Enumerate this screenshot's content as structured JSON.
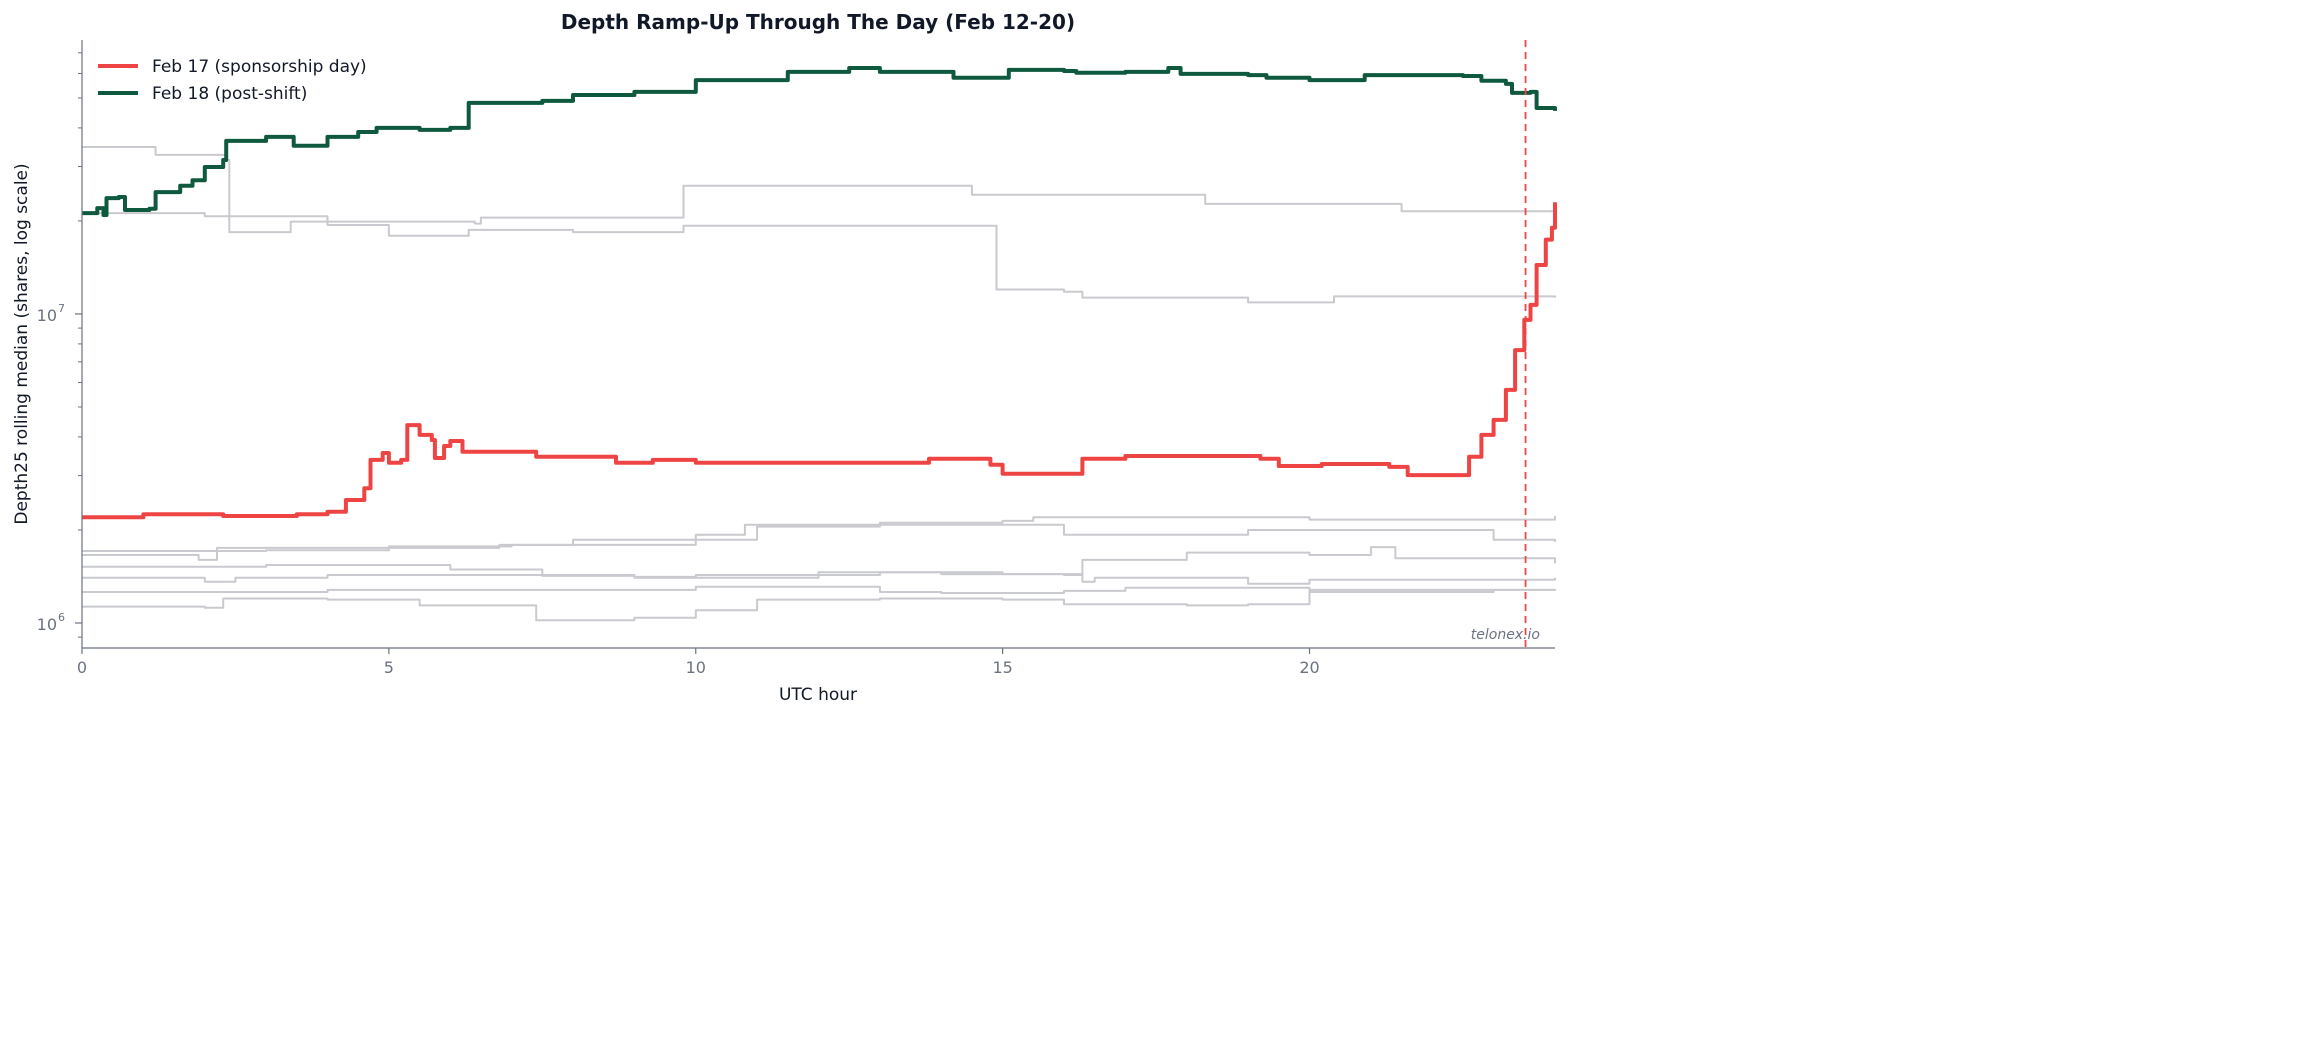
{
  "chart_data": {
    "type": "line",
    "title": "Depth Ramp-Up Through The Day (Feb 12-20)",
    "xlabel": "UTC hour",
    "ylabel": "Depth25 rolling median (shares, log scale)",
    "xlim": [
      0,
      24
    ],
    "ylim": [
      830000,
      77000000
    ],
    "yscale": "log",
    "xticks": [
      0,
      5,
      10,
      15,
      20
    ],
    "yticks": [
      {
        "value": 1000000,
        "base": "10",
        "exp": "6"
      },
      {
        "value": 10000000,
        "base": "10",
        "exp": "7"
      }
    ],
    "grid": false,
    "legend_position": "top-left",
    "step": true,
    "marker_line": {
      "x": 23.52,
      "color": "#ef4444",
      "style": "dashed"
    },
    "watermark": "telonex.io",
    "colors": {
      "feb17": "#ef4444",
      "feb18": "#0f5a3e",
      "other": "#c9cacf"
    },
    "series": [
      {
        "name": "Feb 17 (sponsorship day)",
        "highlight": true,
        "color": "#ef4444",
        "x": [
          0,
          1.0,
          2.3,
          3.5,
          4.0,
          4.3,
          4.6,
          4.7,
          4.9,
          5.0,
          5.2,
          5.3,
          5.5,
          5.7,
          5.75,
          5.9,
          6.0,
          6.2,
          7.4,
          8.7,
          9.3,
          10.0,
          13.5,
          13.8,
          14.8,
          15.0,
          16.2,
          16.3,
          17.0,
          19.2,
          19.5,
          20.2,
          21.3,
          21.6,
          22.5,
          22.6,
          22.8,
          23.0,
          23.2,
          23.35,
          23.5,
          23.6,
          23.7,
          23.85,
          23.95,
          24.0
        ],
        "y": [
          2200000.0,
          2250000.0,
          2220000.0,
          2250000.0,
          2290000.0,
          2500000.0,
          2730000.0,
          3370000.0,
          3550000.0,
          3300000.0,
          3370000.0,
          4370000.0,
          4060000.0,
          3910000.0,
          3420000.0,
          3740000.0,
          3880000.0,
          3580000.0,
          3450000.0,
          3300000.0,
          3370000.0,
          3300000.0,
          3300000.0,
          3400000.0,
          3250000.0,
          3040000.0,
          3040000.0,
          3400000.0,
          3470000.0,
          3400000.0,
          3220000.0,
          3270000.0,
          3200000.0,
          3010000.0,
          3010000.0,
          3450000.0,
          4060000.0,
          4540000.0,
          5680000.0,
          7640000.0,
          9570000.0,
          10700000.0,
          14400000.0,
          17400000.0,
          19000000.0,
          23000000.0
        ]
      },
      {
        "name": "Feb 18 (post-shift)",
        "highlight": true,
        "color": "#0f5a3e",
        "x": [
          0,
          0.25,
          0.35,
          0.4,
          0.6,
          0.7,
          1.1,
          1.2,
          1.6,
          1.8,
          2.0,
          2.3,
          2.35,
          3.0,
          3.4,
          3.45,
          3.9,
          4.0,
          4.5,
          4.8,
          5.5,
          6.0,
          6.3,
          7.5,
          8.0,
          9.0,
          10.0,
          11.5,
          12.5,
          13.0,
          14.2,
          15.0,
          15.1,
          16.0,
          16.2,
          17.0,
          17.7,
          17.9,
          19.0,
          19.3,
          20.0,
          20.8,
          20.9,
          22.5,
          22.8,
          23.2,
          23.3,
          23.6,
          23.7,
          24.0
        ],
        "y": [
          21200000.0,
          22000000.0,
          20900000.0,
          23700000.0,
          23900000.0,
          21700000.0,
          21900000.0,
          24800000.0,
          26000000.0,
          27100000.0,
          29900000.0,
          31500000.0,
          36300000.0,
          37400000.0,
          37400000.0,
          35000000.0,
          35000000.0,
          37400000.0,
          38800000.0,
          40000000.0,
          39400000.0,
          40000000.0,
          48200000.0,
          48900000.0,
          51100000.0,
          52300000.0,
          57100000.0,
          60700000.0,
          62500000.0,
          60700000.0,
          58100000.0,
          58100000.0,
          61600000.0,
          61100000.0,
          60300000.0,
          60700000.0,
          62500000.0,
          59800000.0,
          59300000.0,
          58100000.0,
          57100000.0,
          57100000.0,
          59300000.0,
          58900000.0,
          56800000.0,
          55500000.0,
          51900000.0,
          52300000.0,
          46400000.0,
          45400000.0
        ]
      },
      {
        "highlight": false,
        "x": [
          0,
          1.2,
          2.35,
          2.4,
          3.3,
          3.4,
          6.4,
          6.5,
          9.8,
          14.5,
          18.3,
          21.5,
          24
        ],
        "y": [
          34700000.0,
          32700000.0,
          31500000.0,
          18400000.0,
          18400000.0,
          19900000.0,
          19600000.0,
          20500000.0,
          26000000.0,
          24300000.0,
          22700000.0,
          21500000.0,
          21200000.0
        ]
      },
      {
        "highlight": false,
        "x": [
          0,
          2,
          4,
          5,
          6.3,
          8,
          9.8,
          14.9,
          16,
          16.3,
          19,
          20.3,
          20.4,
          24
        ],
        "y": [
          21200000.0,
          20700000.0,
          19400000.0,
          17900000.0,
          18700000.0,
          18400000.0,
          19300000.0,
          12000000.0,
          11800000.0,
          11300000.0,
          10900000.0,
          10900000.0,
          11400000.0,
          11300000.0
        ]
      },
      {
        "highlight": false,
        "x": [
          0,
          3,
          5,
          7,
          10,
          11,
          13,
          15,
          15.5,
          20,
          24
        ],
        "y": [
          1710000.0,
          1720000.0,
          1770000.0,
          1790000.0,
          1860000.0,
          2050000.0,
          2110000.0,
          2140000.0,
          2200000.0,
          2160000.0,
          2220000.0
        ]
      },
      {
        "highlight": false,
        "x": [
          0,
          1.9,
          2.2,
          6.8,
          8,
          10,
          10.8,
          13.5,
          16,
          18,
          19,
          21,
          23,
          24
        ],
        "y": [
          1660000.0,
          1600000.0,
          1750000.0,
          1790000.0,
          1860000.0,
          1930000.0,
          2080000.0,
          2080000.0,
          1930000.0,
          1930000.0,
          2000000.0,
          2000000.0,
          1860000.0,
          1830000.0
        ]
      },
      {
        "highlight": false,
        "x": [
          0,
          3,
          6,
          7.5,
          9,
          10,
          13,
          14,
          16,
          16.3,
          18,
          20,
          21,
          21.4,
          24
        ],
        "y": [
          1520000.0,
          1540000.0,
          1490000.0,
          1420000.0,
          1410000.0,
          1430000.0,
          1460000.0,
          1440000.0,
          1430000.0,
          1600000.0,
          1690000.0,
          1660000.0,
          1760000.0,
          1620000.0,
          1560000.0
        ]
      },
      {
        "highlight": false,
        "x": [
          0,
          2,
          2.5,
          4,
          6,
          9,
          12,
          15,
          16.3,
          16.5,
          19,
          20,
          24
        ],
        "y": [
          1400000.0,
          1360000.0,
          1400000.0,
          1430000.0,
          1430000.0,
          1400000.0,
          1460000.0,
          1440000.0,
          1360000.0,
          1400000.0,
          1340000.0,
          1380000.0,
          1400000.0
        ]
      },
      {
        "highlight": false,
        "x": [
          0,
          2,
          4,
          6,
          8,
          10,
          13,
          14,
          16,
          17,
          20,
          23,
          24
        ],
        "y": [
          1260000.0,
          1260000.0,
          1280000.0,
          1280000.0,
          1280000.0,
          1310000.0,
          1260000.0,
          1250000.0,
          1270000.0,
          1300000.0,
          1260000.0,
          1280000.0,
          1270000.0
        ]
      },
      {
        "highlight": false,
        "x": [
          0,
          2,
          2.3,
          4,
          5.5,
          7.4,
          9,
          10,
          11,
          13,
          15,
          16,
          18,
          19,
          20,
          24
        ],
        "y": [
          1130000.0,
          1120000.0,
          1200000.0,
          1190000.0,
          1140000.0,
          1020000.0,
          1040000.0,
          1100000.0,
          1190000.0,
          1200000.0,
          1190000.0,
          1150000.0,
          1140000.0,
          1150000.0,
          1280000.0,
          1280000.0
        ]
      }
    ]
  }
}
